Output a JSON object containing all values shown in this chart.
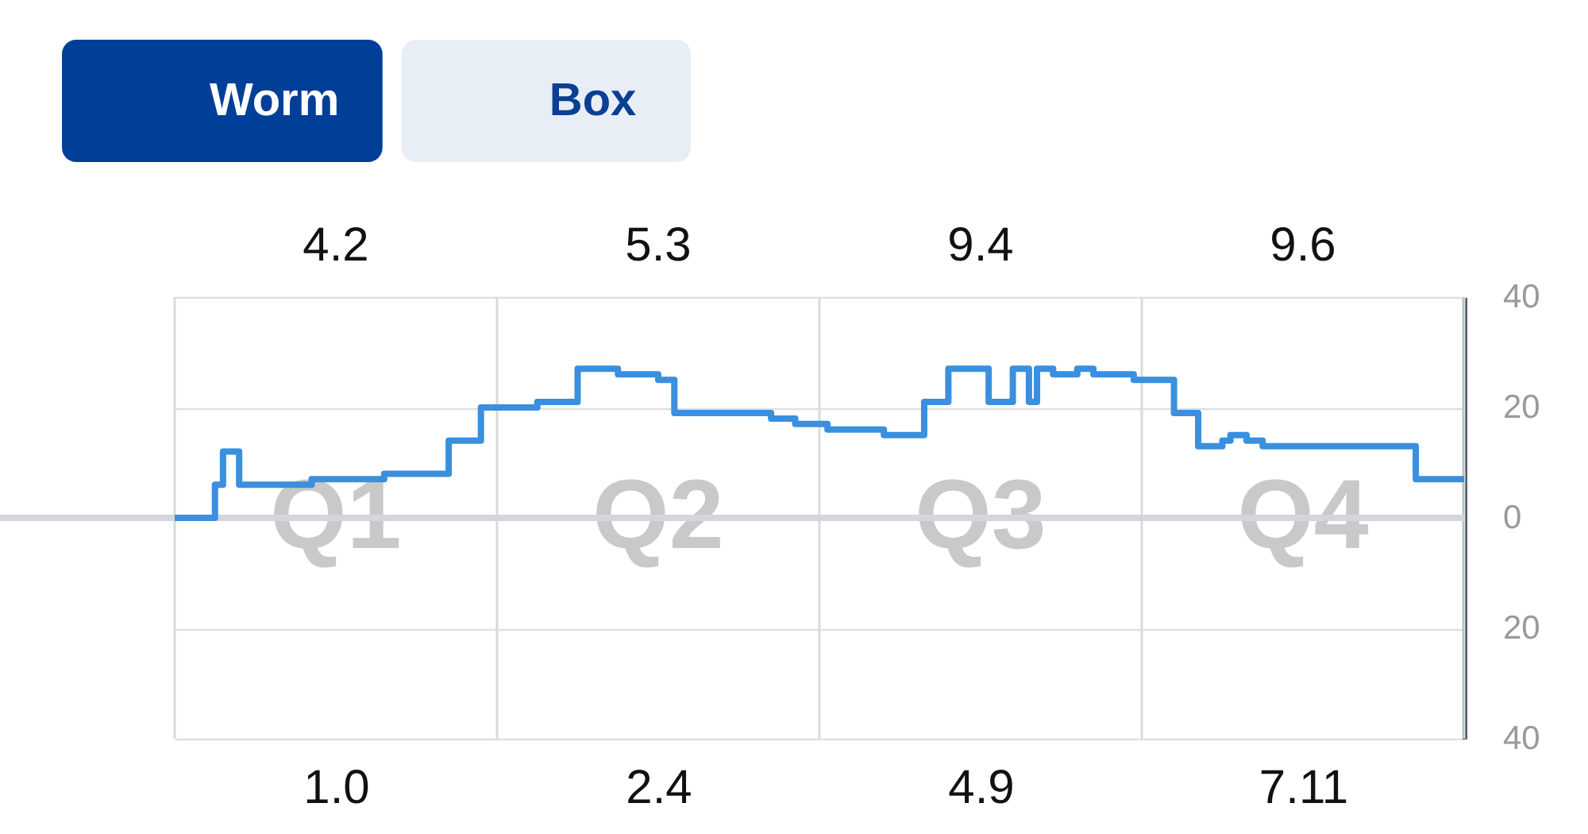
{
  "chart_data": {
    "type": "step",
    "annotations": [
      "Worm",
      "Box",
      "Q1",
      "Q2",
      "Q3",
      "Q4",
      "4.2",
      "5.3",
      "9.4",
      "9.6"
    ],
    "categories": [
      null,
      null,
      null,
      null,
      null,
      null,
      null,
      null,
      null,
      null,
      null,
      null,
      null,
      null,
      null,
      null,
      null,
      null,
      null,
      null,
      "1.0",
      null,
      null,
      null,
      null,
      null,
      null,
      null,
      null,
      null,
      null,
      null,
      null,
      null,
      null,
      null,
      null,
      null,
      null,
      null,
      null,
      null,
      null,
      null,
      null,
      null,
      null,
      null,
      null,
      null,
      null,
      null,
      null,
      null,
      null,
      null,
      null,
      null,
      null,
      null,
      "2.4",
      null,
      null,
      null,
      null,
      null,
      null,
      null,
      null,
      null,
      null,
      null,
      null,
      null,
      null,
      null,
      null,
      null,
      null,
      null,
      null,
      null,
      null,
      null,
      null,
      null,
      null,
      null,
      null,
      null,
      null,
      null,
      null,
      null,
      null,
      null,
      null,
      null,
      null,
      null,
      "4.9",
      null,
      null,
      null,
      null,
      null,
      null,
      null,
      null,
      null,
      null,
      null,
      null,
      null,
      null,
      null,
      null,
      null,
      null,
      null,
      null,
      null,
      null,
      null,
      null,
      null,
      null,
      null,
      null,
      null,
      null,
      null,
      null,
      null,
      null,
      null,
      null,
      null,
      null,
      null,
      "7.11",
      null,
      null,
      null,
      null,
      null,
      null,
      null,
      null,
      null,
      null,
      null,
      null,
      null,
      null,
      null,
      null,
      null,
      null,
      null,
      null
    ],
    "series": [
      {
        "color": "#3a8fde",
        "values": [
          0,
          0,
          0,
          0,
          0,
          6,
          12,
          12,
          6,
          6,
          6,
          6,
          6,
          6,
          6,
          6,
          6,
          7,
          7,
          7,
          7,
          7,
          7,
          7,
          7,
          7,
          8,
          8,
          8,
          8,
          8,
          8,
          8,
          8,
          14,
          14,
          14,
          14,
          20,
          20,
          20,
          20,
          20,
          20,
          20,
          21,
          21,
          21,
          21,
          21,
          27,
          27,
          27,
          27,
          27,
          26,
          26,
          26,
          26,
          26,
          25,
          25,
          19,
          19,
          19,
          19,
          19,
          19,
          19,
          19,
          19,
          19,
          19,
          19,
          18,
          18,
          18,
          17,
          17,
          17,
          17,
          16,
          16,
          16,
          16,
          16,
          16,
          16,
          15,
          15,
          15,
          15,
          15,
          21,
          21,
          21,
          27,
          27,
          27,
          27,
          27,
          21,
          21,
          21,
          27,
          27,
          21,
          27,
          27,
          26,
          26,
          26,
          27,
          27,
          26,
          26,
          26,
          26,
          26,
          25,
          25,
          25,
          25,
          25,
          19,
          19,
          19,
          13,
          13,
          13,
          14,
          15,
          15,
          14,
          14,
          13,
          13,
          13,
          13,
          13,
          13,
          13,
          13,
          13,
          13,
          13,
          13,
          13,
          13,
          13,
          13,
          13,
          13,
          13,
          7,
          7,
          7,
          7,
          7,
          7,
          7
        ]
      }
    ],
    "ylim": [
      -40,
      40
    ],
    "yticks": [
      {
        "value": -40,
        "label": "40"
      },
      {
        "value": -20,
        "label": "20"
      },
      0,
      20,
      40
    ],
    "ref_lines": [
      {
        "axis": "y",
        "value": 0,
        "color": "#d3d6da"
      }
    ],
    "grid": true
  }
}
